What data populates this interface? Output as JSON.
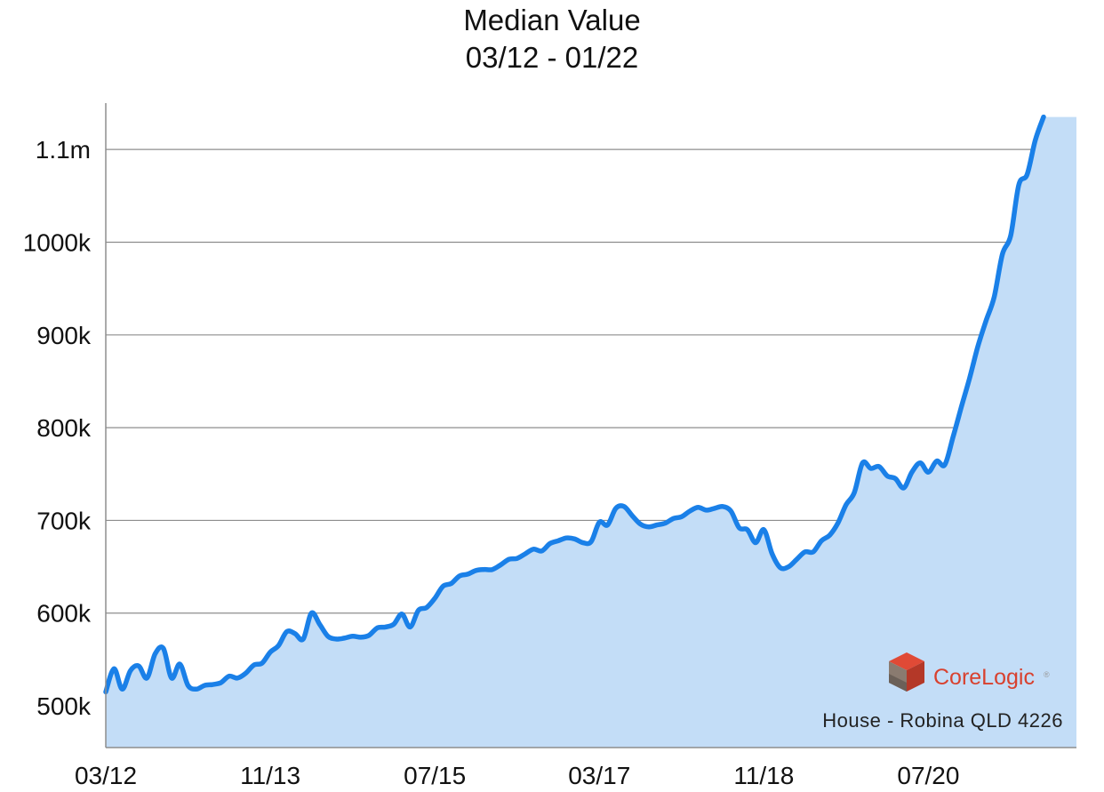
{
  "chart_data": {
    "type": "area",
    "title": "Median Value",
    "subtitle": "03/12 - 01/22",
    "caption": "House - Robina QLD 4226",
    "brand": "CoreLogic",
    "xlabel": "",
    "ylabel": "",
    "x_ticks": [
      "03/12",
      "11/13",
      "07/15",
      "03/17",
      "11/18",
      "07/20"
    ],
    "x_range": [
      0,
      118
    ],
    "ylim": [
      455000,
      1150000
    ],
    "y_ticks": [
      {
        "value": 500000,
        "label": "500k"
      },
      {
        "value": 600000,
        "label": "600k"
      },
      {
        "value": 700000,
        "label": "700k"
      },
      {
        "value": 800000,
        "label": "800k"
      },
      {
        "value": 900000,
        "label": "900k"
      },
      {
        "value": 1000000,
        "label": "1000k"
      },
      {
        "value": 1100000,
        "label": "1.1m"
      }
    ],
    "grid": true,
    "line_color": "#1a80e8",
    "fill_color": "#c3ddf7",
    "series": [
      {
        "x": [
          0,
          1,
          2,
          3,
          4,
          5,
          6,
          7,
          8,
          9,
          10,
          11,
          12,
          13,
          14,
          15,
          16,
          17,
          18,
          19,
          20,
          21,
          22,
          23,
          24,
          25,
          26,
          27,
          28,
          29,
          30,
          31,
          32,
          33,
          34,
          35,
          36,
          37,
          38,
          39,
          40,
          41,
          42,
          43,
          44,
          45,
          46,
          47,
          48,
          49,
          50,
          51,
          52,
          53,
          54,
          55,
          56,
          57,
          58,
          59,
          60,
          61,
          62,
          63,
          64,
          65,
          66,
          67,
          68,
          69,
          70,
          71,
          72,
          73,
          74,
          75,
          76,
          77,
          78,
          79,
          80,
          81,
          82,
          83,
          84,
          85,
          86,
          87,
          88,
          89,
          90,
          91,
          92,
          93,
          94,
          95,
          96,
          97,
          98,
          99,
          100,
          101,
          102,
          103,
          104,
          105,
          106,
          107,
          108,
          109,
          110,
          111,
          112,
          113,
          114,
          115,
          116,
          117,
          118
        ],
        "values": [
          515000,
          540000,
          518000,
          538000,
          543000,
          530000,
          556000,
          562000,
          530000,
          545000,
          522000,
          518000,
          522000,
          523000,
          525000,
          532000,
          530000,
          535000,
          544000,
          546000,
          558000,
          565000,
          580000,
          578000,
          572000,
          600000,
          588000,
          575000,
          572000,
          573000,
          575000,
          574000,
          576000,
          584000,
          585000,
          588000,
          599000,
          585000,
          603000,
          606000,
          616000,
          629000,
          632000,
          640000,
          642000,
          646000,
          647000,
          647000,
          652000,
          658000,
          659000,
          664000,
          669000,
          667000,
          675000,
          678000,
          681000,
          680000,
          676000,
          677000,
          698000,
          695000,
          713000,
          715000,
          705000,
          696000,
          693000,
          695000,
          697000,
          702000,
          704000,
          710000,
          714000,
          711000,
          713000,
          715000,
          710000,
          692000,
          690000,
          676000,
          690000,
          664000,
          649000,
          650000,
          658000,
          666000,
          666000,
          678000,
          684000,
          697000,
          717000,
          730000,
          762000,
          756000,
          758000,
          748000,
          745000,
          735000,
          752000,
          762000,
          752000,
          764000,
          760000,
          790000,
          822000,
          853000,
          887000,
          915000,
          941000,
          987000,
          1007000,
          1062000,
          1073000,
          1110000,
          1135000,
          null,
          null,
          null,
          null
        ]
      }
    ]
  }
}
